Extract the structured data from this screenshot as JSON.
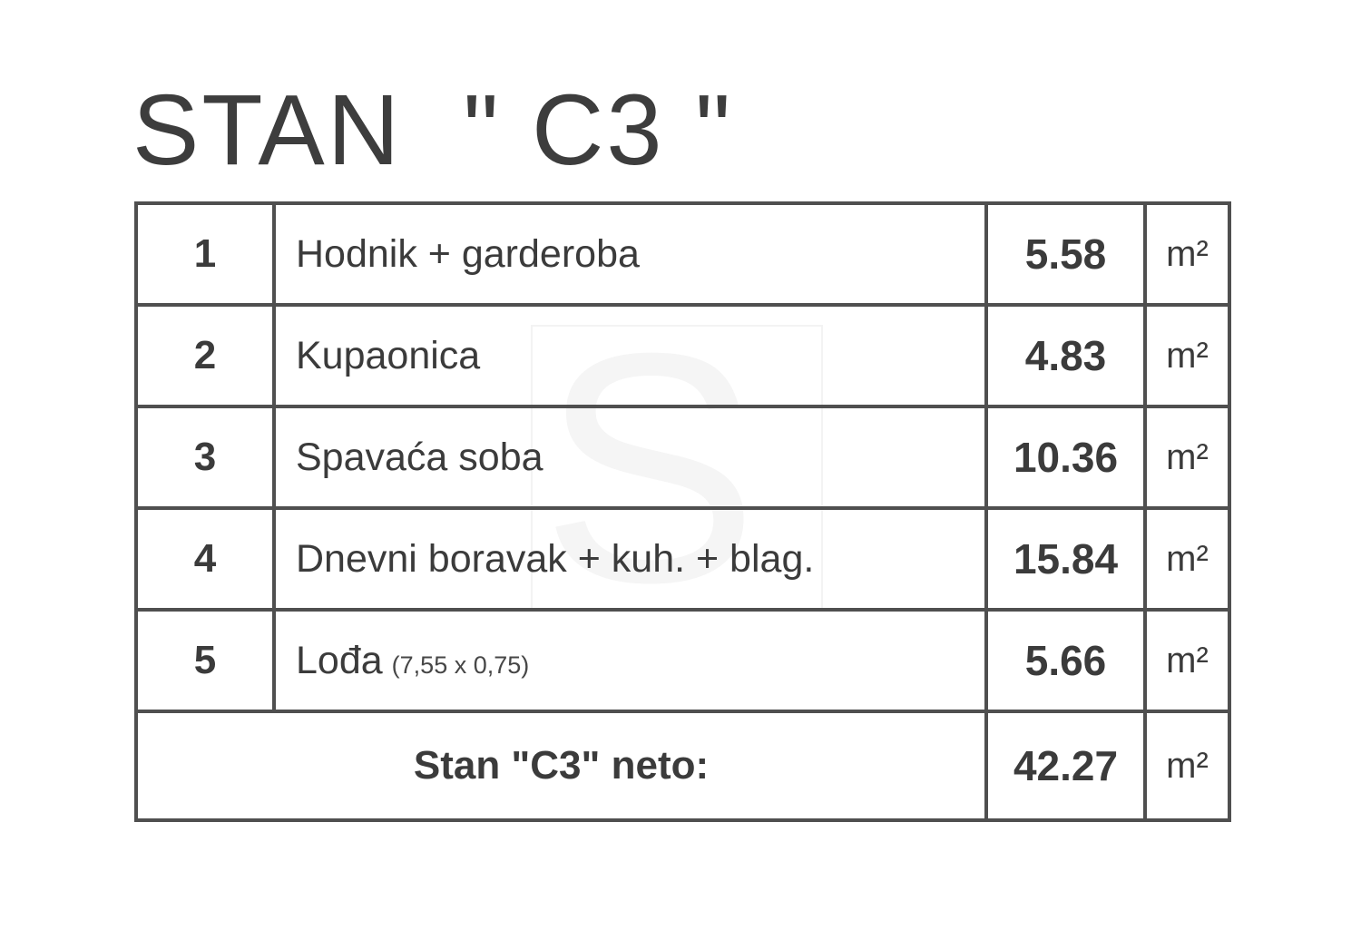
{
  "title": "STAN  \" C3 \"",
  "watermark": {
    "letter": "S"
  },
  "colors": {
    "background": "#ffffff",
    "text": "#3b3b3b",
    "border": "#4f4f4f",
    "watermark": "#f5f5f5"
  },
  "table": {
    "rows": [
      {
        "num": "1",
        "name": "Hodnik + garderoba",
        "note": "",
        "area": "5.58",
        "unit": "m²"
      },
      {
        "num": "2",
        "name": "Kupaonica",
        "note": "",
        "area": "4.83",
        "unit": "m²"
      },
      {
        "num": "3",
        "name": "Spavaća soba",
        "note": "",
        "area": "10.36",
        "unit": "m²"
      },
      {
        "num": "4",
        "name": "Dnevni boravak + kuh. + blag.",
        "note": "",
        "area": "15.84",
        "unit": "m²"
      },
      {
        "num": "5",
        "name": "Lođa",
        "note": "(7,55 x 0,75)",
        "area": "5.66",
        "unit": "m²"
      }
    ],
    "total": {
      "label": "Stan \"C3\" neto:",
      "area": "42.27",
      "unit": "m²"
    }
  }
}
